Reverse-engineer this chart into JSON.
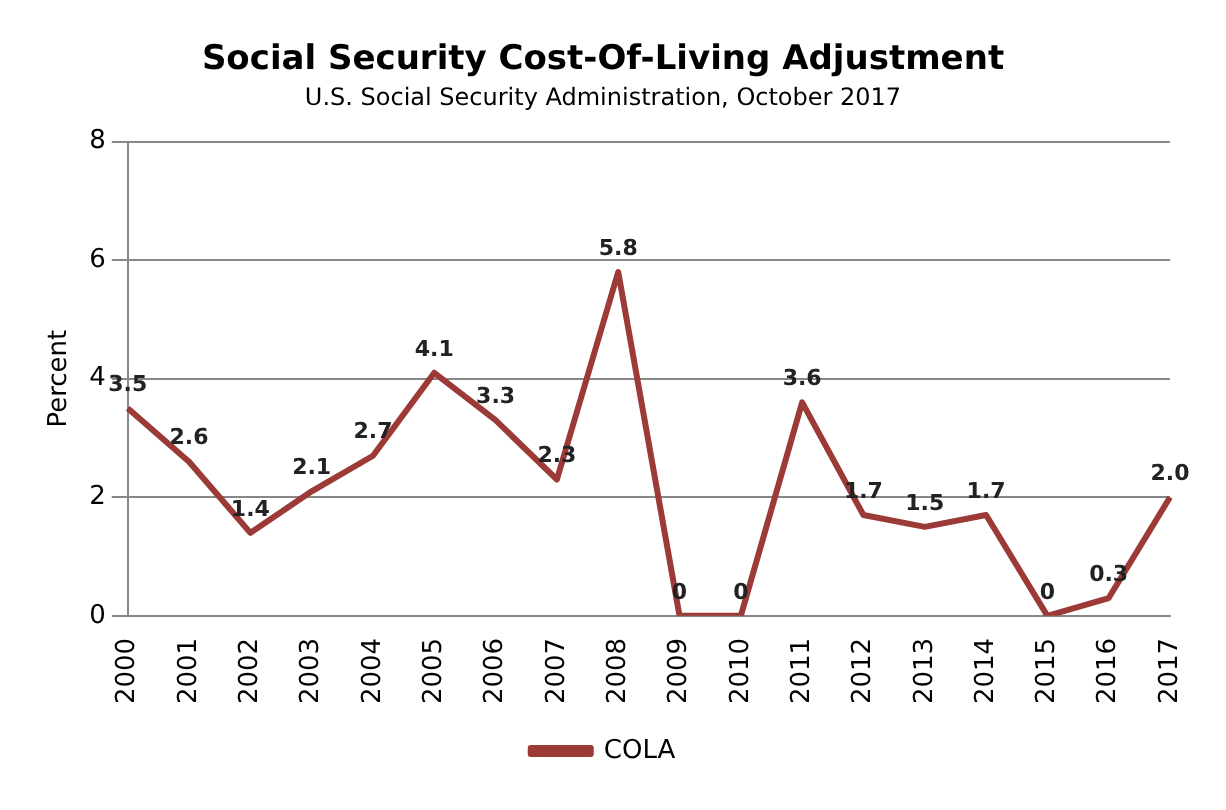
{
  "chart_data": {
    "type": "line",
    "title": "Social Security Cost-Of-Living Adjustment",
    "subtitle": "U.S. Social Security Administration, October 2017",
    "ylabel": "Percent",
    "categories": [
      "2000",
      "2001",
      "2002",
      "2003",
      "2004",
      "2005",
      "2006",
      "2007",
      "2008",
      "2009",
      "2010",
      "2011",
      "2012",
      "2013",
      "2014",
      "2015",
      "2016",
      "2017"
    ],
    "series": [
      {
        "name": "COLA",
        "color": "#9b3a36",
        "values": [
          3.5,
          2.6,
          1.4,
          2.1,
          2.7,
          4.1,
          3.3,
          2.3,
          5.8,
          0,
          0,
          3.6,
          1.7,
          1.5,
          1.7,
          0,
          0.3,
          2.0
        ],
        "value_labels": [
          "3.5",
          "2.6",
          "1.4",
          "2.1",
          "2.7",
          "4.1",
          "3.3",
          "2.3",
          "5.8",
          "0",
          "0",
          "3.6",
          "1.7",
          "1.5",
          "1.7",
          "0",
          "0.3",
          "2.0"
        ]
      }
    ],
    "ylim": [
      0,
      8
    ],
    "yticks": [
      0,
      2,
      4,
      6,
      8
    ],
    "grid": "y",
    "legend": "bottom",
    "marker": "none",
    "line_style": "solid"
  }
}
